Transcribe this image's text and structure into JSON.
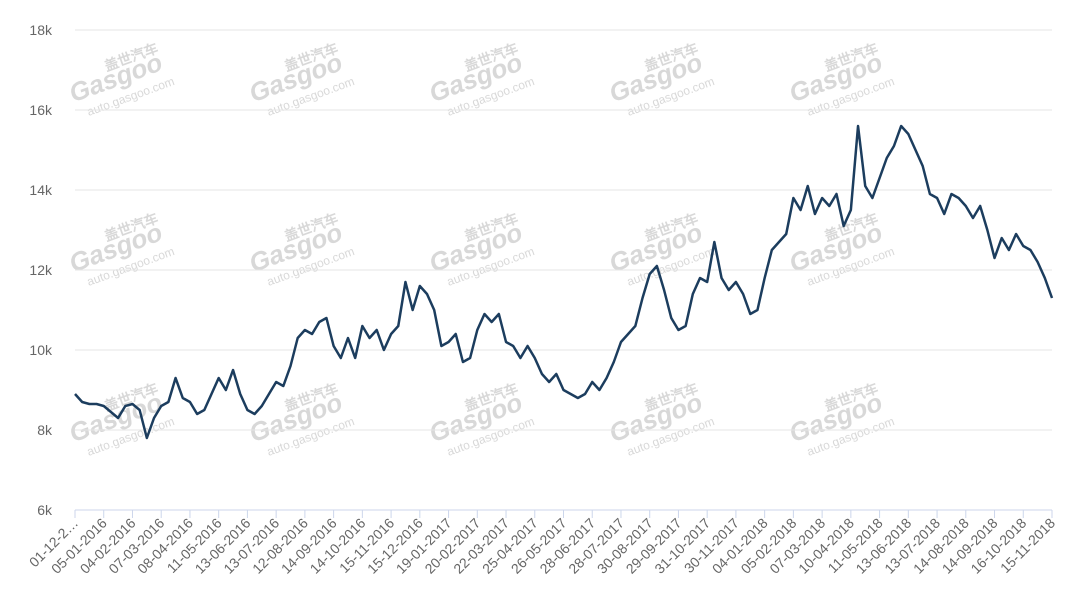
{
  "chart_data": {
    "type": "line",
    "watermark": {
      "brand": "盖世汽车",
      "logo": "Gasgoo",
      "url": "auto.gasgoo.com"
    },
    "categories": [
      "01-12-2…",
      null,
      null,
      null,
      "05-01-2016",
      null,
      null,
      null,
      "04-02-2016",
      null,
      null,
      null,
      "07-03-2016",
      null,
      null,
      null,
      "08-04-2016",
      null,
      null,
      null,
      "11-05-2016",
      null,
      null,
      null,
      "13-06-2016",
      null,
      null,
      null,
      "13-07-2016",
      null,
      null,
      null,
      "12-08-2016",
      null,
      null,
      null,
      "14-09-2016",
      null,
      null,
      null,
      "14-10-2016",
      null,
      null,
      null,
      "15-11-2016",
      null,
      null,
      null,
      "15-12-2016",
      null,
      null,
      null,
      "19-01-2017",
      null,
      null,
      null,
      "20-02-2017",
      null,
      null,
      null,
      "22-03-2017",
      null,
      null,
      null,
      "25-04-2017",
      null,
      null,
      null,
      "26-05-2017",
      null,
      null,
      null,
      "28-06-2017",
      null,
      null,
      null,
      "28-07-2017",
      null,
      null,
      null,
      "30-08-2017",
      null,
      null,
      null,
      "29-09-2017",
      null,
      null,
      null,
      "31-10-2017",
      null,
      null,
      null,
      "30-11-2017",
      null,
      null,
      null,
      "04-01-2018",
      null,
      null,
      null,
      "05-02-2018",
      null,
      null,
      null,
      "07-03-2018",
      null,
      null,
      null,
      "10-04-2018",
      null,
      null,
      null,
      "11-05-2018",
      null,
      null,
      null,
      "13-06-2018",
      null,
      null,
      null,
      "13-07-2018",
      null,
      null,
      null,
      "14-08-2018",
      null,
      null,
      null,
      "14-09-2018",
      null,
      null,
      null,
      "16-10-2018",
      null,
      null,
      null,
      "15-11-2018"
    ],
    "series": [
      {
        "color": "#1c3d5e",
        "values": [
          8900,
          8700,
          8650,
          8650,
          8600,
          8450,
          8300,
          8600,
          8650,
          8500,
          7800,
          8300,
          8600,
          8700,
          9300,
          8800,
          8700,
          8400,
          8500,
          8900,
          9300,
          9000,
          9500,
          8900,
          8500,
          8400,
          8600,
          8900,
          9200,
          9100,
          9600,
          10300,
          10500,
          10400,
          10700,
          10800,
          10100,
          9800,
          10300,
          9800,
          10600,
          10300,
          10500,
          10000,
          10400,
          10600,
          11700,
          11000,
          11600,
          11400,
          11000,
          10100,
          10200,
          10400,
          9700,
          9800,
          10500,
          10900,
          10700,
          10900,
          10200,
          10100,
          9800,
          10100,
          9800,
          9400,
          9200,
          9400,
          9000,
          8900,
          8800,
          8900,
          9200,
          9000,
          9300,
          9700,
          10200,
          10400,
          10600,
          11300,
          11900,
          12100,
          11500,
          10800,
          10500,
          10600,
          11400,
          11800,
          11700,
          12700,
          11800,
          11500,
          11700,
          11400,
          10900,
          11000,
          11800,
          12500,
          12700,
          12900,
          13800,
          13500,
          14100,
          13400,
          13800,
          13600,
          13900,
          13100,
          13500,
          15600,
          14100,
          13800,
          14300,
          14800,
          15100,
          15600,
          15400,
          15000,
          14600,
          13900,
          13800,
          13400,
          13900,
          13800,
          13600,
          13300,
          13600,
          13000,
          12300,
          12800,
          12500,
          12900,
          12600,
          12500,
          12200,
          11800,
          11300
        ]
      }
    ],
    "ylim": [
      6000,
      18000
    ],
    "yticks": [
      {
        "value": 6000,
        "label": "6k"
      },
      {
        "value": 8000,
        "label": "8k"
      },
      {
        "value": 10000,
        "label": "10k"
      },
      {
        "value": 12000,
        "label": "12k"
      },
      {
        "value": 14000,
        "label": "14k"
      },
      {
        "value": 16000,
        "label": "16k"
      },
      {
        "value": 18000,
        "label": "18k"
      }
    ],
    "grid": true
  }
}
